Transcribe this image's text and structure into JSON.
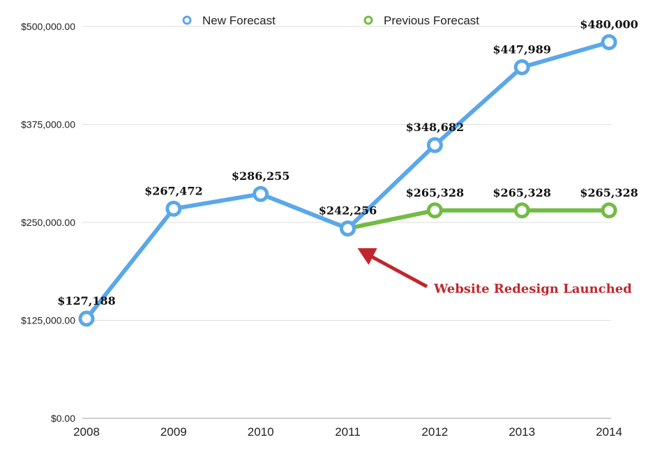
{
  "chart_data": {
    "type": "line",
    "x": [
      "2008",
      "2009",
      "2010",
      "2011",
      "2012",
      "2013",
      "2014"
    ],
    "ylim": [
      0,
      500000
    ],
    "yticks": [
      0,
      125000,
      250000,
      375000,
      500000
    ],
    "ytick_labels": [
      "$0.00",
      "$125,000.00",
      "$250,000.00",
      "$375,000.00",
      "$500,000.00"
    ],
    "grid": true,
    "legend_position": "top",
    "series": [
      {
        "name": "New Forecast",
        "color": "#5aa7ea",
        "x": [
          "2008",
          "2009",
          "2010",
          "2011",
          "2012",
          "2013",
          "2014"
        ],
        "values": [
          127188,
          267472,
          286255,
          242256,
          348682,
          447989,
          480000
        ],
        "labels": [
          "$127,188",
          "$267,472",
          "$286,255",
          "$242,256",
          "$348,682",
          "$447,989",
          "$480,000"
        ]
      },
      {
        "name": "Previous Forecast",
        "color": "#72bb44",
        "x": [
          "2011",
          "2012",
          "2013",
          "2014"
        ],
        "values": [
          242256,
          265328,
          265328,
          265328
        ],
        "labels": [
          "",
          "$265,328",
          "$265,328",
          "$265,328"
        ]
      }
    ],
    "annotation": {
      "text": "Website Redesign Launched",
      "color": "#c0272d",
      "target_x": "2011"
    }
  }
}
